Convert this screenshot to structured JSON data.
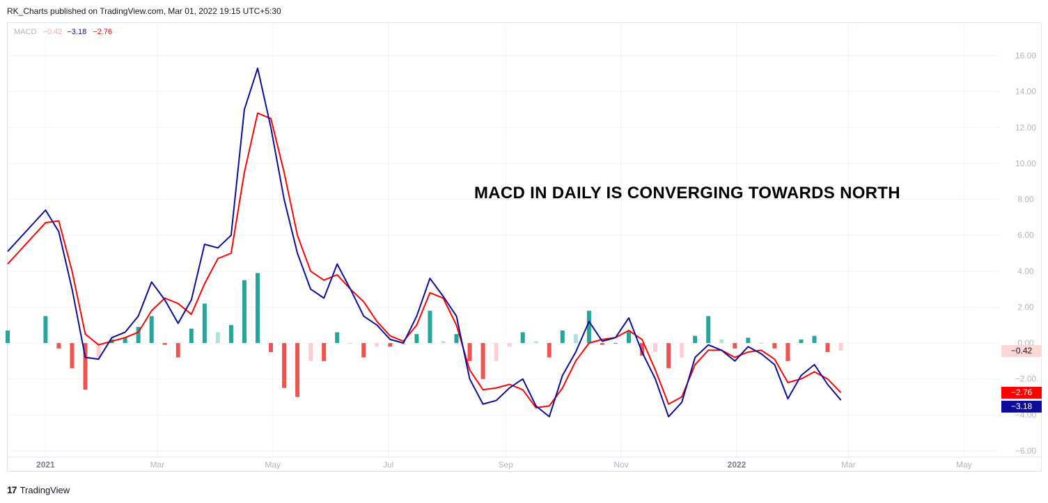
{
  "header": {
    "publish_text": "RK_Charts published on TradingView.com, Mar 01, 2022 19:15 UTC+5:30"
  },
  "legend": {
    "name": "MACD",
    "histogram": "−0.42",
    "macd": "−3.18",
    "signal": "−2.76"
  },
  "annotation": "MACD IN DAILY IS CONVERGING TOWARDS NORTH",
  "price_labels": {
    "histogram": "−0.42",
    "signal": "−2.76",
    "macd": "−3.18"
  },
  "footer": {
    "logo": "17",
    "brand": "TradingView"
  },
  "colors": {
    "macd_line": "#0c0c99",
    "signal_line": "#ff0000",
    "hist_pos_strong": "#26a69a",
    "hist_pos_weak": "#b2dfdb",
    "hist_neg_strong": "#ef5350",
    "hist_neg_weak": "#ffcdd2",
    "grid": "#f0f3fa",
    "axis_text": "#b2b5be"
  },
  "chart_data": {
    "type": "line",
    "indicator": "MACD",
    "x_ticks": [
      "2021",
      "Mar",
      "May",
      "Jul",
      "Sep",
      "Nov",
      "2022",
      "Mar",
      "May"
    ],
    "y_ticks": [
      "16.00",
      "14.00",
      "12.00",
      "10.00",
      "8.00",
      "6.00",
      "4.00",
      "2.00",
      "0.00",
      "−2.00",
      "−4.00",
      "−6.00"
    ],
    "ylim": [
      -6,
      16
    ],
    "x": [
      "2020-12-12",
      "2021-01-01",
      "2021-01-08",
      "2021-01-15",
      "2021-01-22",
      "2021-01-29",
      "2021-02-05",
      "2021-02-12",
      "2021-02-19",
      "2021-02-26",
      "2021-03-05",
      "2021-03-12",
      "2021-03-19",
      "2021-03-26",
      "2021-04-02",
      "2021-04-09",
      "2021-04-16",
      "2021-04-23",
      "2021-04-30",
      "2021-05-07",
      "2021-05-14",
      "2021-05-21",
      "2021-05-28",
      "2021-06-04",
      "2021-06-11",
      "2021-06-18",
      "2021-06-25",
      "2021-07-02",
      "2021-07-09",
      "2021-07-16",
      "2021-07-23",
      "2021-07-30",
      "2021-08-06",
      "2021-08-13",
      "2021-08-20",
      "2021-08-27",
      "2021-09-03",
      "2021-09-10",
      "2021-09-17",
      "2021-09-24",
      "2021-10-01",
      "2021-10-08",
      "2021-10-15",
      "2021-10-22",
      "2021-10-29",
      "2021-11-05",
      "2021-11-12",
      "2021-11-19",
      "2021-11-26",
      "2021-12-03",
      "2021-12-10",
      "2021-12-17",
      "2021-12-24",
      "2021-12-31",
      "2022-01-07",
      "2022-01-14",
      "2022-01-21",
      "2022-01-28",
      "2022-02-04",
      "2022-02-11",
      "2022-02-18",
      "2022-02-25"
    ],
    "series": [
      {
        "values": [
          5.1,
          7.4,
          6.2,
          3.0,
          -0.8,
          -0.9,
          0.3,
          0.6,
          1.5,
          3.4,
          2.4,
          1.1,
          2.4,
          5.5,
          5.3,
          6.0,
          13.0,
          15.3,
          12.0,
          8.0,
          5.0,
          3.0,
          2.5,
          4.4,
          3.0,
          1.5,
          1.0,
          0.2,
          0.0,
          1.5,
          3.6,
          2.6,
          1.5,
          -2.0,
          -3.4,
          -3.2,
          -2.5,
          -2.0,
          -3.5,
          -4.1,
          -1.8,
          -0.5,
          1.2,
          0.1,
          0.3,
          1.4,
          -0.5,
          -2.0,
          -4.1,
          -3.3,
          -0.8,
          -0.1,
          -0.4,
          -1.0,
          -0.2,
          -0.6,
          -1.2,
          -3.1,
          -1.8,
          -1.2,
          -2.3,
          -3.18
        ]
      },
      {
        "values": [
          4.4,
          6.7,
          6.8,
          4.0,
          0.5,
          -0.1,
          0.1,
          0.3,
          0.6,
          1.8,
          2.5,
          2.2,
          1.6,
          3.3,
          4.7,
          5.0,
          9.5,
          12.8,
          12.5,
          9.5,
          6.0,
          4.0,
          3.5,
          3.8,
          3.0,
          2.3,
          1.2,
          0.4,
          0.1,
          1.0,
          2.8,
          2.5,
          1.0,
          -1.5,
          -2.6,
          -2.5,
          -2.3,
          -2.6,
          -3.6,
          -3.5,
          -2.5,
          -1.0,
          0.0,
          0.2,
          0.3,
          0.7,
          0.2,
          -1.5,
          -3.4,
          -3.0,
          -1.2,
          -0.4,
          -0.4,
          -0.8,
          -0.5,
          -0.4,
          -0.9,
          -2.2,
          -2.0,
          -1.6,
          -2.0,
          -2.76
        ]
      },
      {
        "values": [
          0.7,
          1.5,
          -0.3,
          -1.4,
          -2.6,
          -0.8,
          0.2,
          0.3,
          0.9,
          1.5,
          -0.1,
          -0.8,
          0.8,
          2.2,
          0.6,
          1.0,
          3.5,
          3.9,
          -0.5,
          -2.5,
          -3.0,
          -1.0,
          -1.0,
          0.6,
          0.0,
          -0.8,
          -0.2,
          -0.2,
          -0.1,
          0.5,
          1.8,
          0.1,
          0.5,
          -1.0,
          -2.0,
          -1.0,
          -0.2,
          0.6,
          0.1,
          -0.8,
          0.7,
          0.5,
          1.8,
          -0.1,
          0.0,
          0.7,
          -0.7,
          -0.5,
          -1.4,
          -0.8,
          0.4,
          1.5,
          0.2,
          -0.3,
          0.3,
          0.0,
          -0.3,
          -1.0,
          0.2,
          0.4,
          -0.5,
          -0.42
        ]
      }
    ]
  }
}
